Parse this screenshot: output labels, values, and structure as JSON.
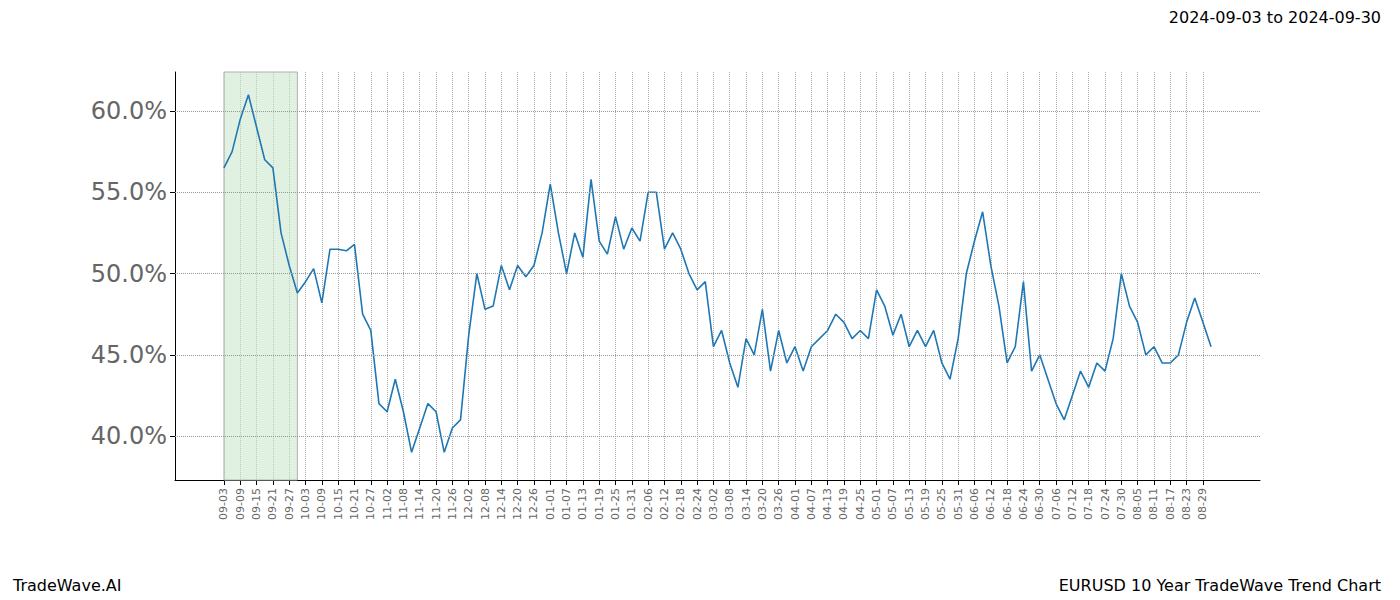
{
  "chart_data": {
    "type": "line",
    "title": "2024-09-03 to 2024-09-30",
    "annotations": [
      "TradeWave.AI",
      "EURUSD 10 Year TradeWave Trend Chart"
    ],
    "highlight": {
      "start": "09-03",
      "end": "09-30"
    },
    "categories": [
      null,
      null,
      null,
      null,
      null,
      null,
      "09-03",
      null,
      "09-09",
      null,
      "09-15",
      null,
      "09-21",
      null,
      "09-27",
      null,
      "10-03",
      null,
      "10-09",
      null,
      "10-15",
      null,
      "10-21",
      null,
      "10-27",
      null,
      "11-02",
      null,
      "11-08",
      null,
      "11-14",
      null,
      "11-20",
      null,
      "11-26",
      null,
      "12-02",
      null,
      "12-08",
      null,
      "12-14",
      null,
      "12-20",
      null,
      "12-26",
      null,
      "01-01",
      null,
      "01-07",
      null,
      "01-13",
      null,
      "01-19",
      null,
      "01-25",
      null,
      "01-31",
      null,
      "02-06",
      null,
      "02-12",
      null,
      "02-18",
      null,
      "02-24",
      null,
      "03-02",
      null,
      "03-08",
      null,
      "03-14",
      null,
      "03-20",
      null,
      "03-26",
      null,
      "04-01",
      null,
      "04-07",
      null,
      "04-13",
      null,
      "04-19",
      null,
      "04-25",
      null,
      "05-01",
      null,
      "05-07",
      null,
      "05-13",
      null,
      "05-19",
      null,
      "05-25",
      null,
      "05-31",
      null,
      "06-06",
      null,
      "06-12",
      null,
      "06-18",
      null,
      "06-24",
      null,
      "06-30",
      null,
      "07-06",
      null,
      "07-12",
      null,
      "07-18",
      null,
      "07-24",
      null,
      "07-30",
      null,
      "08-05",
      null,
      "08-11",
      null,
      "08-17",
      null,
      "08-23",
      null,
      "08-29",
      null,
      null,
      null,
      null,
      null,
      null,
      null
    ],
    "values": [
      null,
      null,
      null,
      null,
      null,
      null,
      56.5,
      57.5,
      59.5,
      61.0,
      59.0,
      57.0,
      56.5,
      52.5,
      50.5,
      48.8,
      49.5,
      50.3,
      48.2,
      51.5,
      51.5,
      51.4,
      51.8,
      47.5,
      46.5,
      42.0,
      41.5,
      43.5,
      41.5,
      39.0,
      40.5,
      42.0,
      41.5,
      39.0,
      40.5,
      41.0,
      46.2,
      50.0,
      47.8,
      48.0,
      50.5,
      49.0,
      50.5,
      49.8,
      50.5,
      52.5,
      55.5,
      52.5,
      50.0,
      52.5,
      51.0,
      55.8,
      52.0,
      51.2,
      53.5,
      51.5,
      52.8,
      52.0,
      55.0,
      55.0,
      51.5,
      52.5,
      51.5,
      50.0,
      49.0,
      49.5,
      45.5,
      46.5,
      44.5,
      43.0,
      46.0,
      45.0,
      47.8,
      44.0,
      46.5,
      44.5,
      45.5,
      44.0,
      45.5,
      46.0,
      46.5,
      47.5,
      47.0,
      46.0,
      46.5,
      46.0,
      49.0,
      48.0,
      46.2,
      47.5,
      45.5,
      46.5,
      45.5,
      46.5,
      44.5,
      43.5,
      46.0,
      50.0,
      52.0,
      53.8,
      50.5,
      48.0,
      44.5,
      45.5,
      49.5,
      44.0,
      45.0,
      43.5,
      42.0,
      41.0,
      42.5,
      44.0,
      43.0,
      44.5,
      44.0,
      46.0,
      50.0,
      48.0,
      47.0,
      45.0,
      45.5,
      44.5,
      44.5,
      45.0,
      47.0,
      48.5,
      47.0,
      45.5,
      null,
      null,
      null,
      null,
      null,
      null
    ],
    "color": "#1f77b4",
    "ylim": [
      37.3,
      62.4
    ],
    "yticks": [
      {
        "value": 40,
        "label": "40.0%"
      },
      {
        "value": 45,
        "label": "45.0%"
      },
      {
        "value": 50,
        "label": "50.0%"
      },
      {
        "value": 55,
        "label": "55.0%"
      },
      {
        "value": 60,
        "label": "60.0%"
      }
    ],
    "grid": true
  }
}
